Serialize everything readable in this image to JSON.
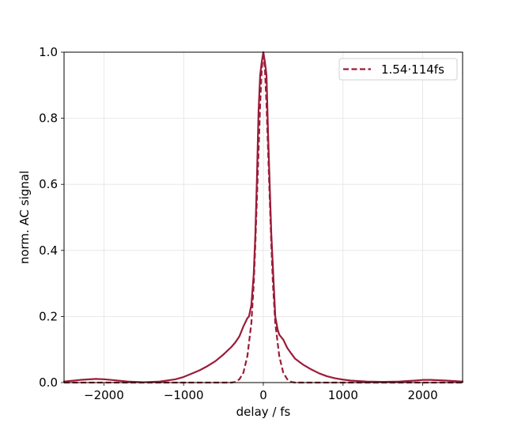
{
  "chart_data": {
    "type": "line",
    "xlabel": "delay / fs",
    "ylabel": "norm. AC signal",
    "xlim": [
      -2500,
      2500
    ],
    "ylim": [
      0,
      1.0
    ],
    "xticks": [
      -2000,
      -1000,
      0,
      1000,
      2000
    ],
    "xtick_labels": [
      "−2000",
      "−1000",
      "0",
      "1000",
      "2000"
    ],
    "yticks": [
      0,
      0.2,
      0.4,
      0.6,
      0.8,
      1.0
    ],
    "ytick_labels": [
      "0.0",
      "0.2",
      "0.4",
      "0.6",
      "0.8",
      "1.0"
    ],
    "grid": true,
    "legend_position": "top-right",
    "series": [
      {
        "style": "solid",
        "color": "#9b1c38",
        "x": [
          -2500,
          -2300,
          -2100,
          -2000,
          -1900,
          -1700,
          -1500,
          -1300,
          -1100,
          -1000,
          -900,
          -800,
          -700,
          -600,
          -500,
          -400,
          -350,
          -300,
          -250,
          -200,
          -180,
          -150,
          -120,
          -100,
          -80,
          -60,
          -40,
          -20,
          0,
          20,
          40,
          60,
          80,
          100,
          120,
          150,
          180,
          200,
          250,
          300,
          350,
          400,
          500,
          600,
          700,
          800,
          900,
          1000,
          1100,
          1300,
          1500,
          1700,
          1900,
          2000,
          2100,
          2300,
          2500
        ],
        "y": [
          0.003,
          0.008,
          0.011,
          0.01,
          0.008,
          0.003,
          0.001,
          0.003,
          0.01,
          0.017,
          0.027,
          0.037,
          0.05,
          0.065,
          0.085,
          0.108,
          0.122,
          0.14,
          0.17,
          0.195,
          0.2,
          0.235,
          0.33,
          0.45,
          0.62,
          0.82,
          0.93,
          0.97,
          1.0,
          0.97,
          0.93,
          0.75,
          0.6,
          0.45,
          0.35,
          0.2,
          0.16,
          0.145,
          0.13,
          0.105,
          0.088,
          0.072,
          0.054,
          0.04,
          0.028,
          0.019,
          0.013,
          0.009,
          0.006,
          0.003,
          0.002,
          0.003,
          0.006,
          0.008,
          0.008,
          0.006,
          0.003
        ]
      },
      {
        "name": "1.54·114fs",
        "style": "dashed",
        "color": "#9b1c38",
        "x": [
          -2500,
          -600,
          -400,
          -350,
          -300,
          -250,
          -200,
          -150,
          -120,
          -100,
          -80,
          -60,
          -40,
          -20,
          0,
          20,
          40,
          60,
          80,
          100,
          120,
          150,
          200,
          250,
          300,
          350,
          400,
          600,
          2500
        ],
        "y": [
          0,
          0,
          0.0,
          0.002,
          0.01,
          0.03,
          0.08,
          0.18,
          0.3,
          0.42,
          0.56,
          0.7,
          0.84,
          0.95,
          1.0,
          0.95,
          0.84,
          0.7,
          0.56,
          0.42,
          0.3,
          0.18,
          0.08,
          0.03,
          0.01,
          0.002,
          0.0,
          0,
          0
        ]
      }
    ]
  }
}
